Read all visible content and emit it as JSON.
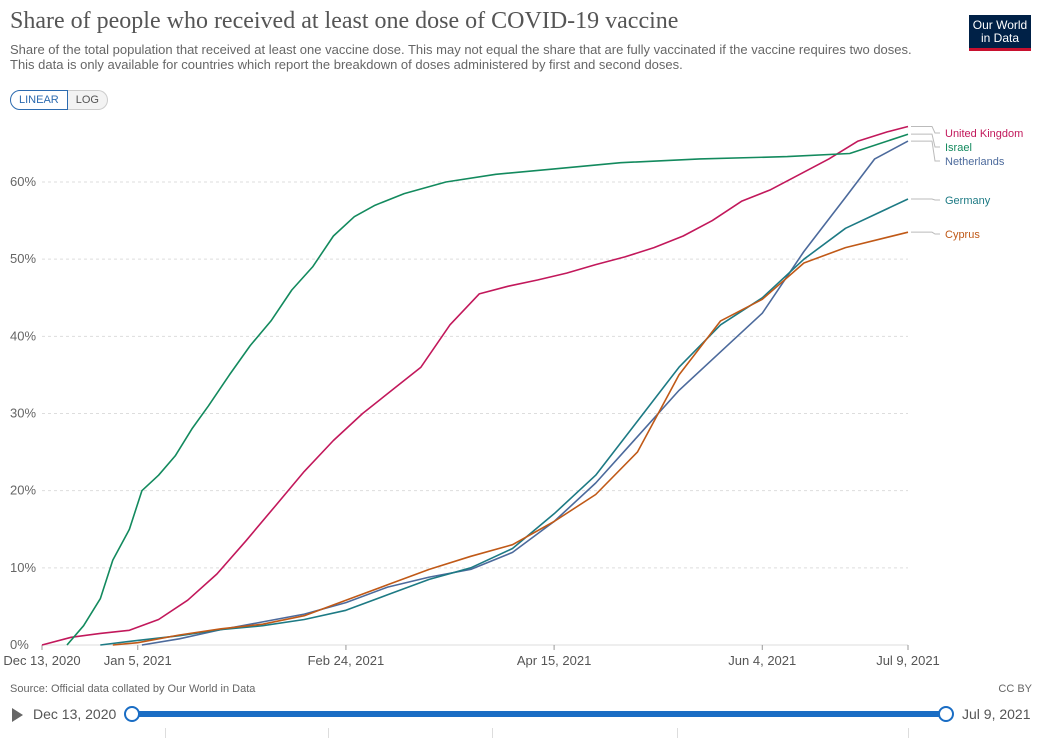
{
  "header": {
    "title": "Share of people who received at least one dose of COVID-19 vaccine",
    "subtitle": "Share of the total population that received at least one vaccine dose. This may not equal the share that are fully vaccinated if the vaccine requires two doses. This data is only available for countries which report the breakdown of doses administered by first and second doses.",
    "logo_line1": "Our World",
    "logo_line2": "in Data"
  },
  "controls": {
    "linear_label": "LINEAR",
    "log_label": "LOG",
    "selected_scale": "linear"
  },
  "footer": {
    "source": "Source: Official data collated by Our World in Data",
    "license": "CC BY"
  },
  "timeline": {
    "start_label": "Dec 13, 2020",
    "end_label": "Jul 9, 2021"
  },
  "colors": {
    "accent": "#1a6dc4",
    "grid": "#dddddd"
  },
  "chart_data": {
    "type": "line",
    "title": "Share of people who received at least one dose of COVID-19 vaccine",
    "x_type": "date",
    "xlim": [
      "2020-12-13",
      "2021-07-09"
    ],
    "ylim": [
      0,
      67
    ],
    "y_ticks": [
      0,
      10,
      20,
      30,
      40,
      50,
      60
    ],
    "y_tick_labels": [
      "0%",
      "10%",
      "20%",
      "30%",
      "40%",
      "50%",
      "60%"
    ],
    "x_ticks": [
      "2020-12-13",
      "2021-01-05",
      "2021-02-24",
      "2021-04-15",
      "2021-06-04",
      "2021-07-09"
    ],
    "x_tick_labels": [
      "Dec 13, 2020",
      "Jan 5, 2021",
      "Feb 24, 2021",
      "Apr 15, 2021",
      "Jun 4, 2021",
      "Jul 9, 2021"
    ],
    "grid": true,
    "legend": "right",
    "series": [
      {
        "name": "United Kingdom",
        "color": "#c2185b",
        "points": [
          [
            "2020-12-13",
            0
          ],
          [
            "2020-12-20",
            1.0
          ],
          [
            "2020-12-27",
            1.5
          ],
          [
            "2021-01-03",
            1.9
          ],
          [
            "2021-01-10",
            3.3
          ],
          [
            "2021-01-17",
            5.8
          ],
          [
            "2021-01-24",
            9.2
          ],
          [
            "2021-01-31",
            13.5
          ],
          [
            "2021-02-07",
            18
          ],
          [
            "2021-02-14",
            22.5
          ],
          [
            "2021-02-21",
            26.5
          ],
          [
            "2021-02-28",
            30
          ],
          [
            "2021-03-07",
            33
          ],
          [
            "2021-03-14",
            36
          ],
          [
            "2021-03-21",
            41.5
          ],
          [
            "2021-03-28",
            45.5
          ],
          [
            "2021-04-04",
            46.5
          ],
          [
            "2021-04-11",
            47.3
          ],
          [
            "2021-04-18",
            48.2
          ],
          [
            "2021-04-25",
            49.3
          ],
          [
            "2021-05-02",
            50.3
          ],
          [
            "2021-05-09",
            51.5
          ],
          [
            "2021-05-16",
            53
          ],
          [
            "2021-05-23",
            55
          ],
          [
            "2021-05-30",
            57.5
          ],
          [
            "2021-06-06",
            59
          ],
          [
            "2021-06-13",
            61
          ],
          [
            "2021-06-20",
            63
          ],
          [
            "2021-06-27",
            65.3
          ],
          [
            "2021-07-04",
            66.5
          ],
          [
            "2021-07-09",
            67.2
          ]
        ]
      },
      {
        "name": "Israel",
        "color": "#138a5e",
        "points": [
          [
            "2020-12-19",
            0
          ],
          [
            "2020-12-23",
            2.5
          ],
          [
            "2020-12-27",
            6
          ],
          [
            "2020-12-30",
            11
          ],
          [
            "2021-01-03",
            15
          ],
          [
            "2021-01-06",
            20
          ],
          [
            "2021-01-10",
            22
          ],
          [
            "2021-01-14",
            24.5
          ],
          [
            "2021-01-18",
            28
          ],
          [
            "2021-01-22",
            31
          ],
          [
            "2021-01-27",
            35
          ],
          [
            "2021-02-01",
            38.8
          ],
          [
            "2021-02-06",
            42
          ],
          [
            "2021-02-11",
            46
          ],
          [
            "2021-02-16",
            49
          ],
          [
            "2021-02-21",
            53
          ],
          [
            "2021-02-26",
            55.5
          ],
          [
            "2021-03-03",
            57
          ],
          [
            "2021-03-10",
            58.5
          ],
          [
            "2021-03-20",
            60
          ],
          [
            "2021-04-01",
            61
          ],
          [
            "2021-04-15",
            61.7
          ],
          [
            "2021-05-01",
            62.5
          ],
          [
            "2021-05-20",
            63
          ],
          [
            "2021-06-10",
            63.3
          ],
          [
            "2021-06-25",
            63.7
          ],
          [
            "2021-07-09",
            66.2
          ]
        ]
      },
      {
        "name": "Netherlands",
        "color": "#4c6a9c",
        "points": [
          [
            "2021-01-06",
            0
          ],
          [
            "2021-01-15",
            0.8
          ],
          [
            "2021-01-25",
            2
          ],
          [
            "2021-02-04",
            3
          ],
          [
            "2021-02-14",
            4
          ],
          [
            "2021-02-24",
            5.5
          ],
          [
            "2021-03-06",
            7.5
          ],
          [
            "2021-03-16",
            8.8
          ],
          [
            "2021-03-26",
            9.8
          ],
          [
            "2021-04-05",
            12
          ],
          [
            "2021-04-15",
            16
          ],
          [
            "2021-04-25",
            21
          ],
          [
            "2021-05-05",
            27
          ],
          [
            "2021-05-15",
            33
          ],
          [
            "2021-05-25",
            38
          ],
          [
            "2021-06-04",
            43
          ],
          [
            "2021-06-14",
            51
          ],
          [
            "2021-06-24",
            58
          ],
          [
            "2021-07-01",
            63
          ],
          [
            "2021-07-09",
            65.3
          ]
        ]
      },
      {
        "name": "Germany",
        "color": "#1d7a84",
        "points": [
          [
            "2020-12-27",
            0
          ],
          [
            "2021-01-05",
            0.6
          ],
          [
            "2021-01-15",
            1.2
          ],
          [
            "2021-01-25",
            2
          ],
          [
            "2021-02-04",
            2.5
          ],
          [
            "2021-02-14",
            3.3
          ],
          [
            "2021-02-24",
            4.5
          ],
          [
            "2021-03-06",
            6.5
          ],
          [
            "2021-03-16",
            8.5
          ],
          [
            "2021-03-26",
            10
          ],
          [
            "2021-04-05",
            12.5
          ],
          [
            "2021-04-15",
            17
          ],
          [
            "2021-04-25",
            22
          ],
          [
            "2021-05-05",
            29
          ],
          [
            "2021-05-15",
            36
          ],
          [
            "2021-05-25",
            41.5
          ],
          [
            "2021-06-04",
            45
          ],
          [
            "2021-06-14",
            50
          ],
          [
            "2021-06-24",
            54
          ],
          [
            "2021-07-09",
            57.8
          ]
        ]
      },
      {
        "name": "Cyprus",
        "color": "#c05917",
        "points": [
          [
            "2020-12-30",
            0
          ],
          [
            "2021-01-05",
            0.3
          ],
          [
            "2021-01-15",
            1.3
          ],
          [
            "2021-01-25",
            2.1
          ],
          [
            "2021-02-04",
            2.7
          ],
          [
            "2021-02-14",
            3.8
          ],
          [
            "2021-02-24",
            5.8
          ],
          [
            "2021-03-06",
            7.8
          ],
          [
            "2021-03-16",
            9.8
          ],
          [
            "2021-03-26",
            11.5
          ],
          [
            "2021-04-05",
            13
          ],
          [
            "2021-04-15",
            16
          ],
          [
            "2021-04-25",
            19.5
          ],
          [
            "2021-05-05",
            25
          ],
          [
            "2021-05-15",
            35
          ],
          [
            "2021-05-25",
            42
          ],
          [
            "2021-06-04",
            44.8
          ],
          [
            "2021-06-14",
            49.5
          ],
          [
            "2021-06-24",
            51.5
          ],
          [
            "2021-07-09",
            53.5
          ]
        ]
      }
    ]
  }
}
